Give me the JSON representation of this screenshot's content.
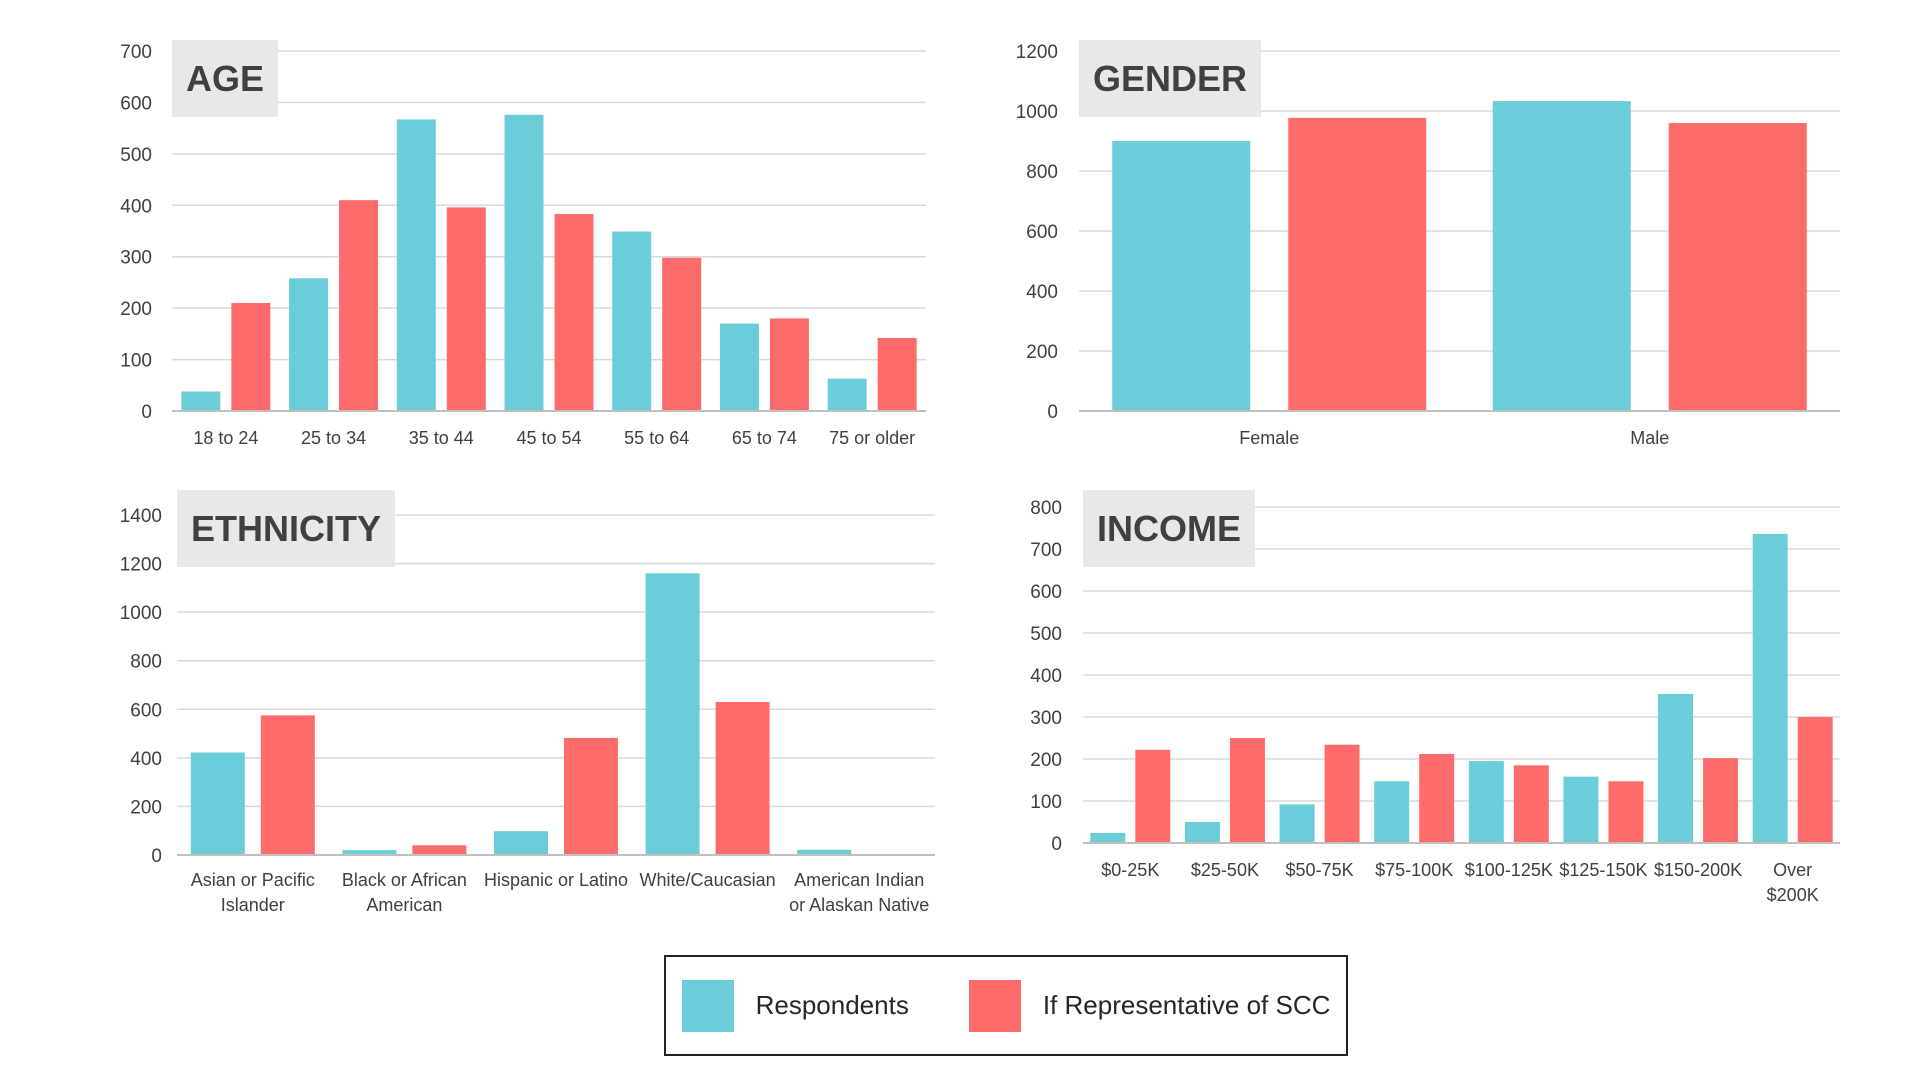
{
  "colors": {
    "respondents": "#6bcdd9",
    "representative": "#fe6b6b",
    "grid": "#d9d9d9",
    "axis_text": "#404040"
  },
  "legend": {
    "respondents_label": "Respondents",
    "representative_label": "If Representative of SCC"
  },
  "chart_data": [
    {
      "id": "age",
      "type": "bar",
      "title": "AGE",
      "categories": [
        [
          "18 to 24"
        ],
        [
          "25 to 34"
        ],
        [
          "35 to 44"
        ],
        [
          "45 to 54"
        ],
        [
          "55 to 64"
        ],
        [
          "65 to 74"
        ],
        [
          "75 or older"
        ]
      ],
      "series": [
        {
          "name": "Respondents",
          "values": [
            38,
            258,
            567,
            576,
            349,
            170,
            63
          ]
        },
        {
          "name": "If Representative of SCC",
          "values": [
            210,
            410,
            396,
            383,
            298,
            180,
            142
          ]
        }
      ],
      "ylim": [
        0,
        700
      ],
      "yticks": [
        0,
        100,
        200,
        300,
        400,
        500,
        600,
        700
      ],
      "grid": true
    },
    {
      "id": "gender",
      "type": "bar",
      "title": "GENDER",
      "categories": [
        [
          "Female"
        ],
        [
          "Male"
        ]
      ],
      "series": [
        {
          "name": "Respondents",
          "values": [
            900,
            1033
          ]
        },
        {
          "name": "If Representative of SCC",
          "values": [
            977,
            960
          ]
        }
      ],
      "ylim": [
        0,
        1200
      ],
      "yticks": [
        0,
        200,
        400,
        600,
        800,
        1000,
        1200
      ],
      "grid": true
    },
    {
      "id": "ethnicity",
      "type": "bar",
      "title": "ETHNICITY",
      "categories": [
        [
          "Asian or Pacific",
          "Islander"
        ],
        [
          "Black or African",
          "American"
        ],
        [
          "Hispanic or Latino"
        ],
        [
          "White/Caucasian"
        ],
        [
          "American Indian",
          "or Alaskan Native"
        ]
      ],
      "series": [
        {
          "name": "Respondents",
          "values": [
            422,
            20,
            98,
            1160,
            22
          ]
        },
        {
          "name": "If Representative of SCC",
          "values": [
            575,
            40,
            482,
            630,
            0
          ]
        }
      ],
      "ylim": [
        0,
        1400
      ],
      "yticks": [
        0,
        200,
        400,
        600,
        800,
        1000,
        1200,
        1400
      ],
      "grid": true
    },
    {
      "id": "income",
      "type": "bar",
      "title": "INCOME",
      "categories": [
        [
          "$0-25K"
        ],
        [
          "$25-50K"
        ],
        [
          "$50-75K"
        ],
        [
          "$75-100K"
        ],
        [
          "$100-125K"
        ],
        [
          "$125-150K"
        ],
        [
          "$150-200K"
        ],
        [
          "Over",
          "$200K"
        ]
      ],
      "series": [
        {
          "name": "Respondents",
          "values": [
            24,
            50,
            92,
            147,
            195,
            158,
            355,
            736
          ]
        },
        {
          "name": "If Representative of SCC",
          "values": [
            222,
            250,
            234,
            212,
            185,
            147,
            202,
            300
          ]
        }
      ],
      "ylim": [
        0,
        800
      ],
      "yticks": [
        0,
        100,
        200,
        300,
        400,
        500,
        600,
        700,
        800
      ],
      "grid": true
    }
  ]
}
